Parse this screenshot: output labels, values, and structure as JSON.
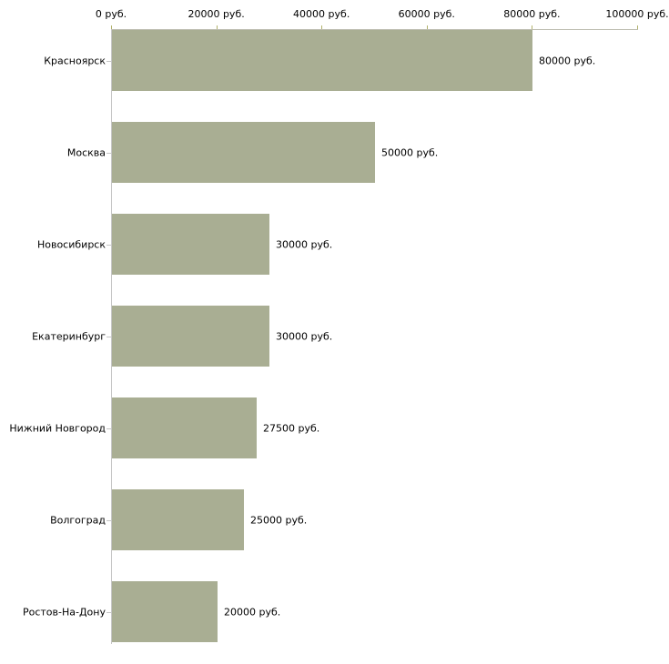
{
  "chart_style": {
    "bar_color": "#a9ae93",
    "axis_line_color": "#bcbcb0",
    "y_axis_line_color": "#c6c6c6",
    "x_tick_color": "#b2b26b",
    "y_tick_color": "#c6c6c6",
    "text_color": "#000000",
    "background": "#ffffff"
  },
  "chart_data": {
    "type": "bar",
    "orientation": "horizontal",
    "title": "",
    "xlabel": "",
    "ylabel": "",
    "grid": false,
    "legend_position": "none",
    "categories": [
      "Красноярск",
      "Москва",
      "Новосибирск",
      "Екатеринбург",
      "Нижний Новгород",
      "Волгоград",
      "Ростов-На-Дону"
    ],
    "values": [
      80000,
      50000,
      30000,
      30000,
      27500,
      25000,
      20000
    ],
    "value_labels": [
      "80000 руб.",
      "50000 руб.",
      "30000 руб.",
      "30000 руб.",
      "27500 руб.",
      "25000 руб.",
      "20000 руб."
    ],
    "x_axis": {
      "position": "top",
      "min": 0,
      "max": 100000,
      "ticks": [
        0,
        20000,
        40000,
        60000,
        80000,
        100000
      ],
      "tick_labels": [
        "0 руб.",
        "20000 руб.",
        "40000 руб.",
        "60000 руб.",
        "80000 руб.",
        "100000 руб."
      ]
    }
  }
}
